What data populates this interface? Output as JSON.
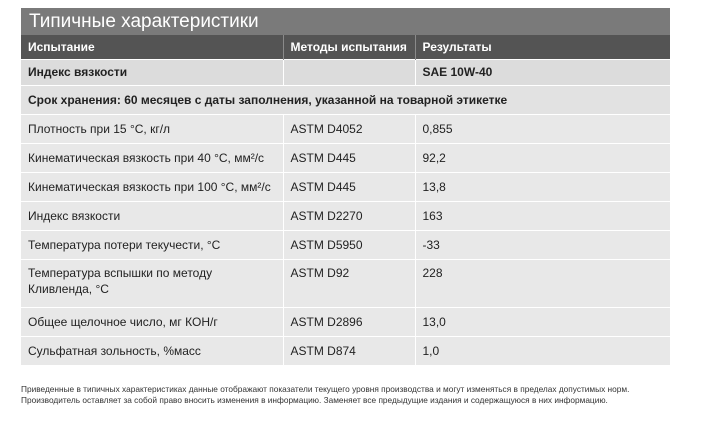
{
  "title": "Типичные характеристики",
  "headers": [
    "Испытание",
    "Методы испытания",
    "Результаты"
  ],
  "viscosity_grade_row": {
    "test": "Индекс вязкости",
    "method": "",
    "result": "SAE 10W-40"
  },
  "shelf_life": "Срок хранения: 60 месяцев с даты заполнения, указанной на товарной этикетке",
  "rows": [
    {
      "test": "Плотность при 15 °C, кг/л",
      "method": "ASTM D4052",
      "result": "0,855"
    },
    {
      "test": "Кинематическая вязкость при 40 °C, мм²/с",
      "method": "ASTM D445",
      "result": "92,2"
    },
    {
      "test": "Кинематическая вязкость при 100 °C, мм²/с",
      "method": "ASTM D445",
      "result": "13,8"
    },
    {
      "test": "Индекс вязкости",
      "method": "ASTM D2270",
      "result": "163"
    },
    {
      "test": "Температура потери текучести, °C",
      "method": "ASTM D5950",
      "result": "-33"
    },
    {
      "test": "Температура вспышки по методу Кливленда, °C",
      "method": "ASTM D92",
      "result": "228"
    },
    {
      "test": "Общее щелочное число, мг КОН/г",
      "method": "ASTM D2896",
      "result": "13,0"
    },
    {
      "test": "Сульфатная зольность, %масс",
      "method": "ASTM D874",
      "result": "1,0"
    }
  ],
  "footnote": "Приведенные в типичных характеристиках данные отображают показатели текущего уровня производства и могут изменяться в пределах допустимых норм. Производитель оставляет за собой право вносить изменения в информацию. Заменяет все предыдущие издания и содержащуюся в них информацию."
}
